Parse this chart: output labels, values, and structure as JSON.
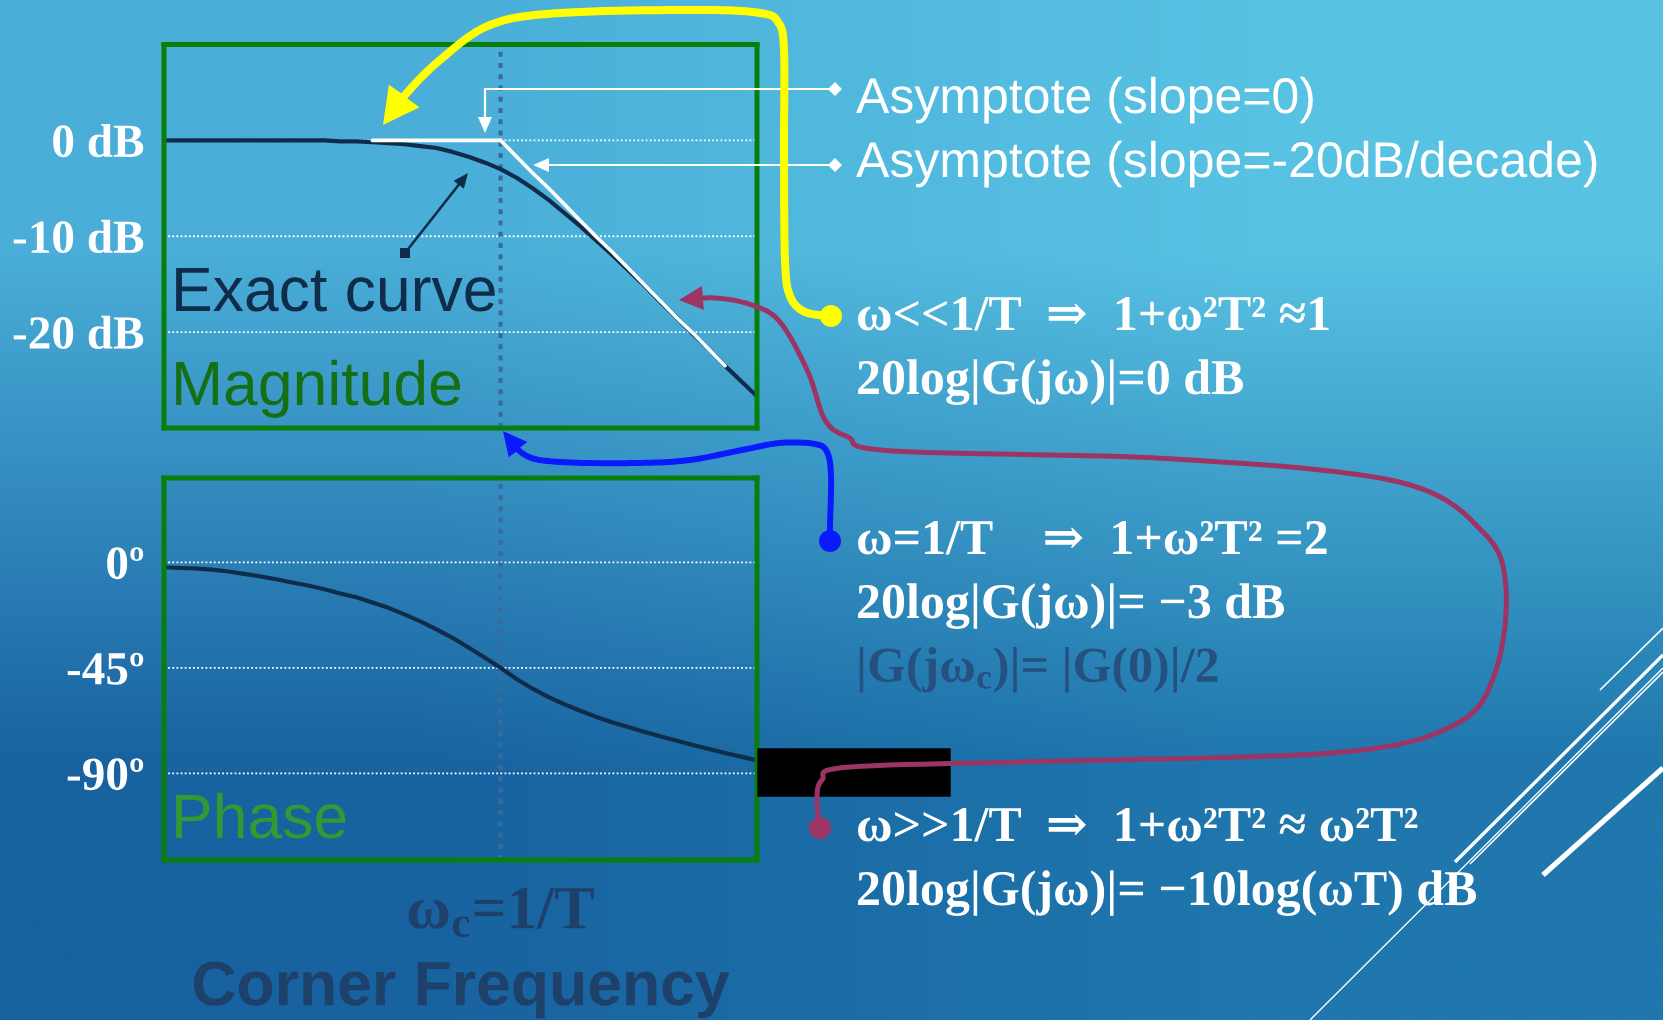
{
  "chart_data": [
    {
      "type": "line",
      "title": "Magnitude",
      "categories": [
        null,
        null,
        null,
        null,
        null,
        null,
        null,
        null,
        null,
        null,
        null,
        null,
        null,
        null,
        null,
        null,
        null,
        null,
        null,
        null,
        null,
        null,
        null,
        null,
        null,
        null,
        null,
        null,
        null,
        null,
        null,
        null,
        null,
        null,
        null,
        null,
        null,
        null
      ],
      "series": [
        {
          "color": "#0f2d4a",
          "values": [
            0,
            0,
            0,
            0,
            0,
            0,
            0,
            0,
            0,
            0,
            0,
            -0.1,
            -0.1,
            -0.2,
            -0.3,
            -0.4,
            -0.6,
            -0.8,
            -1.2,
            -1.7,
            -2.3,
            -3.0,
            -3.9,
            -5.0,
            -6.2,
            -7.6,
            -9.0,
            -10.5,
            -12.0,
            -13.6,
            -15.2,
            -16.9,
            -18.5,
            -20.2,
            -21.8,
            -23.5,
            -25.1,
            -26.7
          ]
        },
        {
          "color": "#ffffff",
          "values": [
            null,
            null,
            null,
            null,
            null,
            null,
            null,
            null,
            null,
            null,
            null,
            null,
            null,
            0,
            0,
            0,
            0,
            0,
            0,
            0,
            0,
            0,
            null,
            null,
            null,
            null,
            null,
            null,
            null,
            null,
            null,
            null,
            null,
            null,
            null,
            null,
            null,
            null
          ]
        },
        {
          "color": "#ffffff",
          "values": [
            null,
            null,
            null,
            null,
            null,
            null,
            null,
            null,
            null,
            null,
            null,
            null,
            null,
            null,
            null,
            null,
            null,
            null,
            null,
            null,
            null,
            0,
            -1.7,
            -3.4,
            -5.0,
            -6.7,
            -8.4,
            -10.1,
            -11.7,
            -13.4,
            -15.1,
            -16.8,
            -18.5,
            -20.1,
            -21.8,
            -23.5,
            null,
            null
          ]
        }
      ],
      "ylim": [
        -30,
        10
      ],
      "yticks": [
        {
          "value": 0,
          "label": "0 dB"
        },
        {
          "value": -10,
          "label": "-10 dB"
        },
        {
          "value": -20,
          "label": "-20 dB"
        }
      ],
      "grid": "y",
      "tick_labels": "y",
      "annotations": [
        "Exact curve",
        "Asymptote (slope=0)",
        "Asymptote (slope=-20dB/decade)",
        "ω<<1/T  ⇒  1+ω²T² ≈1",
        "20log|G(jω)|=0 dB",
        "ω=1/T    ⇒  1+ω²T² =2",
        "20log|G(jω)|= −3 dB",
        "|G(jω$_{c}$)|= |G(0)|/2",
        "ω>>1/T  ⇒  1+ω²T² ≈ ω²T²",
        "20log|G(jω)|= −10log(ωT) dB"
      ]
    },
    {
      "type": "line",
      "title": "Phase",
      "xlabel": "Corner Frequency",
      "categories": [
        null,
        null,
        null,
        null,
        null,
        null,
        null,
        null,
        null,
        null,
        null,
        null,
        null,
        null,
        null,
        null,
        null,
        null,
        null,
        null,
        null,
        "ω$_{c}$=1/T",
        null,
        null,
        null,
        null,
        null,
        null,
        null,
        null,
        null,
        null,
        null,
        null,
        null,
        null,
        null,
        null
      ],
      "series": [
        {
          "color": "#0f2d4a",
          "values": [
            -2.1,
            -2.4,
            -2.6,
            -3.1,
            -3.9,
            -4.9,
            -6.0,
            -7.2,
            -8.6,
            -9.9,
            -11.5,
            -13.3,
            -14.9,
            -17.1,
            -19.4,
            -22.2,
            -25.2,
            -28.6,
            -32.2,
            -36.3,
            -40.6,
            -45.0,
            -49.8,
            -53.9,
            -57.5,
            -60.6,
            -63.4,
            -66.0,
            -68.3,
            -70.4,
            -72.4,
            -74.3,
            -76.1,
            -77.9,
            -79.6,
            -81.3,
            -82.9,
            -84.5
          ]
        }
      ],
      "ylim": [
        -127,
        36
      ],
      "yticks": [
        {
          "value": 0,
          "label": "0º"
        },
        {
          "value": -45,
          "label": "-45º"
        },
        {
          "value": -90,
          "label": "-90º"
        }
      ],
      "grid": "y",
      "ref_lines": [
        {
          "axis": "x",
          "value": "ω$_{c}$=1/T",
          "color": "#3c6b9b",
          "line_style": "dotted"
        }
      ]
    }
  ]
}
